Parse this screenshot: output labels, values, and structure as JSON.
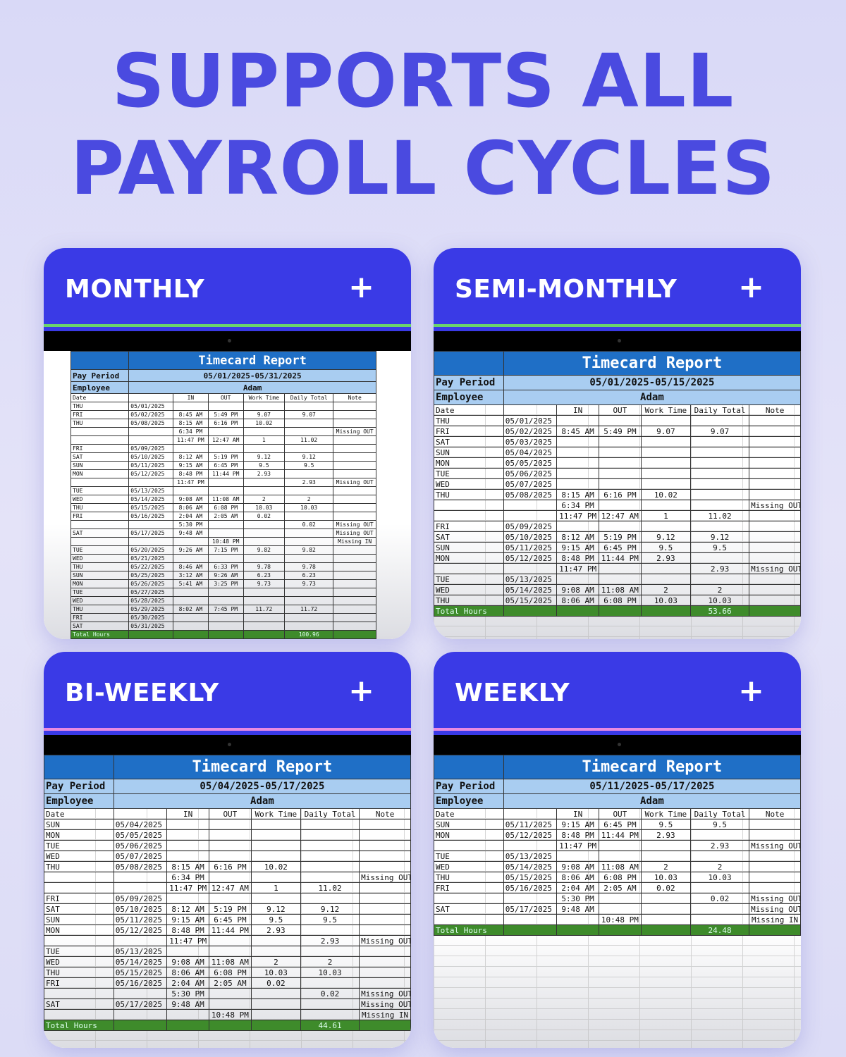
{
  "headline": {
    "line1": "SUPPORTS ALL",
    "line2": "PAYROLL CYCLES"
  },
  "colors": {
    "headline": "#4a4ae0",
    "card_header": "#3a3ae6",
    "title_row": "#1f6fc6",
    "label_row": "#a9cdf1",
    "total_row": "#3e8b2b"
  },
  "common": {
    "report_title": "Timecard Report",
    "pay_period_label": "Pay Period",
    "employee_label": "Employee",
    "employee": "Adam",
    "headers": [
      "Date",
      "",
      "IN",
      "OUT",
      "Work Time",
      "Daily Total",
      "Note"
    ],
    "total_label": "Total Hours",
    "plus_icon": "plus-icon"
  },
  "cards": [
    {
      "title": "MONTHLY",
      "pay_period": "05/01/2025-05/31/2025",
      "total": "100.96",
      "rows": [
        [
          "THU",
          "05/01/2025",
          "",
          "",
          "",
          "",
          ""
        ],
        [
          "FRI",
          "05/02/2025",
          "8:45 AM",
          "5:49 PM",
          "9.07",
          "9.07",
          ""
        ],
        [
          "THU",
          "05/08/2025",
          "8:15 AM",
          "6:16 PM",
          "10.02",
          "",
          ""
        ],
        [
          "",
          "",
          "6:34 PM",
          "",
          "",
          "",
          "Missing OUT"
        ],
        [
          "",
          "",
          "11:47 PM",
          "12:47 AM",
          "1",
          "11.02",
          ""
        ],
        [
          "FRI",
          "05/09/2025",
          "",
          "",
          "",
          "",
          ""
        ],
        [
          "SAT",
          "05/10/2025",
          "8:12 AM",
          "5:19 PM",
          "9.12",
          "9.12",
          ""
        ],
        [
          "SUN",
          "05/11/2025",
          "9:15 AM",
          "6:45 PM",
          "9.5",
          "9.5",
          ""
        ],
        [
          "MON",
          "05/12/2025",
          "8:48 PM",
          "11:44 PM",
          "2.93",
          "",
          ""
        ],
        [
          "",
          "",
          "11:47 PM",
          "",
          "",
          "2.93",
          "Missing OUT"
        ],
        [
          "TUE",
          "05/13/2025",
          "",
          "",
          "",
          "",
          ""
        ],
        [
          "WED",
          "05/14/2025",
          "9:08 AM",
          "11:08 AM",
          "2",
          "2",
          ""
        ],
        [
          "THU",
          "05/15/2025",
          "8:06 AM",
          "6:08 PM",
          "10.03",
          "10.03",
          ""
        ],
        [
          "FRI",
          "05/16/2025",
          "2:04 AM",
          "2:05 AM",
          "0.02",
          "",
          ""
        ],
        [
          "",
          "",
          "5:30 PM",
          "",
          "",
          "0.02",
          "Missing OUT"
        ],
        [
          "SAT",
          "05/17/2025",
          "9:48 AM",
          "",
          "",
          "",
          "Missing OUT"
        ],
        [
          "",
          "",
          "",
          "10:48 PM",
          "",
          "",
          "Missing IN"
        ],
        [
          "TUE",
          "05/20/2025",
          "9:26 AM",
          "7:15 PM",
          "9.82",
          "9.82",
          ""
        ],
        [
          "WED",
          "05/21/2025",
          "",
          "",
          "",
          "",
          ""
        ],
        [
          "THU",
          "05/22/2025",
          "8:46 AM",
          "6:33 PM",
          "9.78",
          "9.78",
          ""
        ],
        [
          "SUN",
          "05/25/2025",
          "3:12 AM",
          "9:26 AM",
          "6.23",
          "6.23",
          ""
        ],
        [
          "MON",
          "05/26/2025",
          "5:41 AM",
          "3:25 PM",
          "9.73",
          "9.73",
          ""
        ],
        [
          "TUE",
          "05/27/2025",
          "",
          "",
          "",
          "",
          ""
        ],
        [
          "WED",
          "05/28/2025",
          "",
          "",
          "",
          "",
          ""
        ],
        [
          "THU",
          "05/29/2025",
          "8:02 AM",
          "7:45 PM",
          "11.72",
          "11.72",
          ""
        ],
        [
          "FRI",
          "05/30/2025",
          "",
          "",
          "",
          "",
          ""
        ],
        [
          "SAT",
          "05/31/2025",
          "",
          "",
          "",
          "",
          ""
        ]
      ]
    },
    {
      "title": "SEMI-MONTHLY",
      "pay_period": "05/01/2025-05/15/2025",
      "total": "53.66",
      "rows": [
        [
          "THU",
          "05/01/2025",
          "",
          "",
          "",
          "",
          ""
        ],
        [
          "FRI",
          "05/02/2025",
          "8:45 AM",
          "5:49 PM",
          "9.07",
          "9.07",
          ""
        ],
        [
          "SAT",
          "05/03/2025",
          "",
          "",
          "",
          "",
          ""
        ],
        [
          "SUN",
          "05/04/2025",
          "",
          "",
          "",
          "",
          ""
        ],
        [
          "MON",
          "05/05/2025",
          "",
          "",
          "",
          "",
          ""
        ],
        [
          "TUE",
          "05/06/2025",
          "",
          "",
          "",
          "",
          ""
        ],
        [
          "WED",
          "05/07/2025",
          "",
          "",
          "",
          "",
          ""
        ],
        [
          "THU",
          "05/08/2025",
          "8:15 AM",
          "6:16 PM",
          "10.02",
          "",
          ""
        ],
        [
          "",
          "",
          "6:34 PM",
          "",
          "",
          "",
          "Missing OUT"
        ],
        [
          "",
          "",
          "11:47 PM",
          "12:47 AM",
          "1",
          "11.02",
          ""
        ],
        [
          "FRI",
          "05/09/2025",
          "",
          "",
          "",
          "",
          ""
        ],
        [
          "SAT",
          "05/10/2025",
          "8:12 AM",
          "5:19 PM",
          "9.12",
          "9.12",
          ""
        ],
        [
          "SUN",
          "05/11/2025",
          "9:15 AM",
          "6:45 PM",
          "9.5",
          "9.5",
          ""
        ],
        [
          "MON",
          "05/12/2025",
          "8:48 PM",
          "11:44 PM",
          "2.93",
          "",
          ""
        ],
        [
          "",
          "",
          "11:47 PM",
          "",
          "",
          "2.93",
          "Missing OUT"
        ],
        [
          "TUE",
          "05/13/2025",
          "",
          "",
          "",
          "",
          ""
        ],
        [
          "WED",
          "05/14/2025",
          "9:08 AM",
          "11:08 AM",
          "2",
          "2",
          ""
        ],
        [
          "THU",
          "05/15/2025",
          "8:06 AM",
          "6:08 PM",
          "10.03",
          "10.03",
          ""
        ]
      ]
    },
    {
      "title": "BI-WEEKLY",
      "pay_period": "05/04/2025-05/17/2025",
      "total": "44.61",
      "rows": [
        [
          "SUN",
          "05/04/2025",
          "",
          "",
          "",
          "",
          ""
        ],
        [
          "MON",
          "05/05/2025",
          "",
          "",
          "",
          "",
          ""
        ],
        [
          "TUE",
          "05/06/2025",
          "",
          "",
          "",
          "",
          ""
        ],
        [
          "WED",
          "05/07/2025",
          "",
          "",
          "",
          "",
          ""
        ],
        [
          "THU",
          "05/08/2025",
          "8:15 AM",
          "6:16 PM",
          "10.02",
          "",
          ""
        ],
        [
          "",
          "",
          "6:34 PM",
          "",
          "",
          "",
          "Missing OUT"
        ],
        [
          "",
          "",
          "11:47 PM",
          "12:47 AM",
          "1",
          "11.02",
          ""
        ],
        [
          "FRI",
          "05/09/2025",
          "",
          "",
          "",
          "",
          ""
        ],
        [
          "SAT",
          "05/10/2025",
          "8:12 AM",
          "5:19 PM",
          "9.12",
          "9.12",
          ""
        ],
        [
          "SUN",
          "05/11/2025",
          "9:15 AM",
          "6:45 PM",
          "9.5",
          "9.5",
          ""
        ],
        [
          "MON",
          "05/12/2025",
          "8:48 PM",
          "11:44 PM",
          "2.93",
          "",
          ""
        ],
        [
          "",
          "",
          "11:47 PM",
          "",
          "",
          "2.93",
          "Missing OUT"
        ],
        [
          "TUE",
          "05/13/2025",
          "",
          "",
          "",
          "",
          ""
        ],
        [
          "WED",
          "05/14/2025",
          "9:08 AM",
          "11:08 AM",
          "2",
          "2",
          ""
        ],
        [
          "THU",
          "05/15/2025",
          "8:06 AM",
          "6:08 PM",
          "10.03",
          "10.03",
          ""
        ],
        [
          "FRI",
          "05/16/2025",
          "2:04 AM",
          "2:05 AM",
          "0.02",
          "",
          ""
        ],
        [
          "",
          "",
          "5:30 PM",
          "",
          "",
          "0.02",
          "Missing OUT"
        ],
        [
          "SAT",
          "05/17/2025",
          "9:48 AM",
          "",
          "",
          "",
          "Missing OUT"
        ],
        [
          "",
          "",
          "",
          "10:48 PM",
          "",
          "",
          "Missing IN"
        ]
      ]
    },
    {
      "title": "WEEKLY",
      "pay_period": "05/11/2025-05/17/2025",
      "total": "24.48",
      "rows": [
        [
          "SUN",
          "05/11/2025",
          "9:15 AM",
          "6:45 PM",
          "9.5",
          "9.5",
          ""
        ],
        [
          "MON",
          "05/12/2025",
          "8:48 PM",
          "11:44 PM",
          "2.93",
          "",
          ""
        ],
        [
          "",
          "",
          "11:47 PM",
          "",
          "",
          "2.93",
          "Missing OUT"
        ],
        [
          "TUE",
          "05/13/2025",
          "",
          "",
          "",
          "",
          ""
        ],
        [
          "WED",
          "05/14/2025",
          "9:08 AM",
          "11:08 AM",
          "2",
          "2",
          ""
        ],
        [
          "THU",
          "05/15/2025",
          "8:06 AM",
          "6:08 PM",
          "10.03",
          "10.03",
          ""
        ],
        [
          "FRI",
          "05/16/2025",
          "2:04 AM",
          "2:05 AM",
          "0.02",
          "",
          ""
        ],
        [
          "",
          "",
          "5:30 PM",
          "",
          "",
          "0.02",
          "Missing OUT"
        ],
        [
          "SAT",
          "05/17/2025",
          "9:48 AM",
          "",
          "",
          "",
          "Missing OUT"
        ],
        [
          "",
          "",
          "",
          "10:48 PM",
          "",
          "",
          "Missing IN"
        ]
      ]
    }
  ]
}
